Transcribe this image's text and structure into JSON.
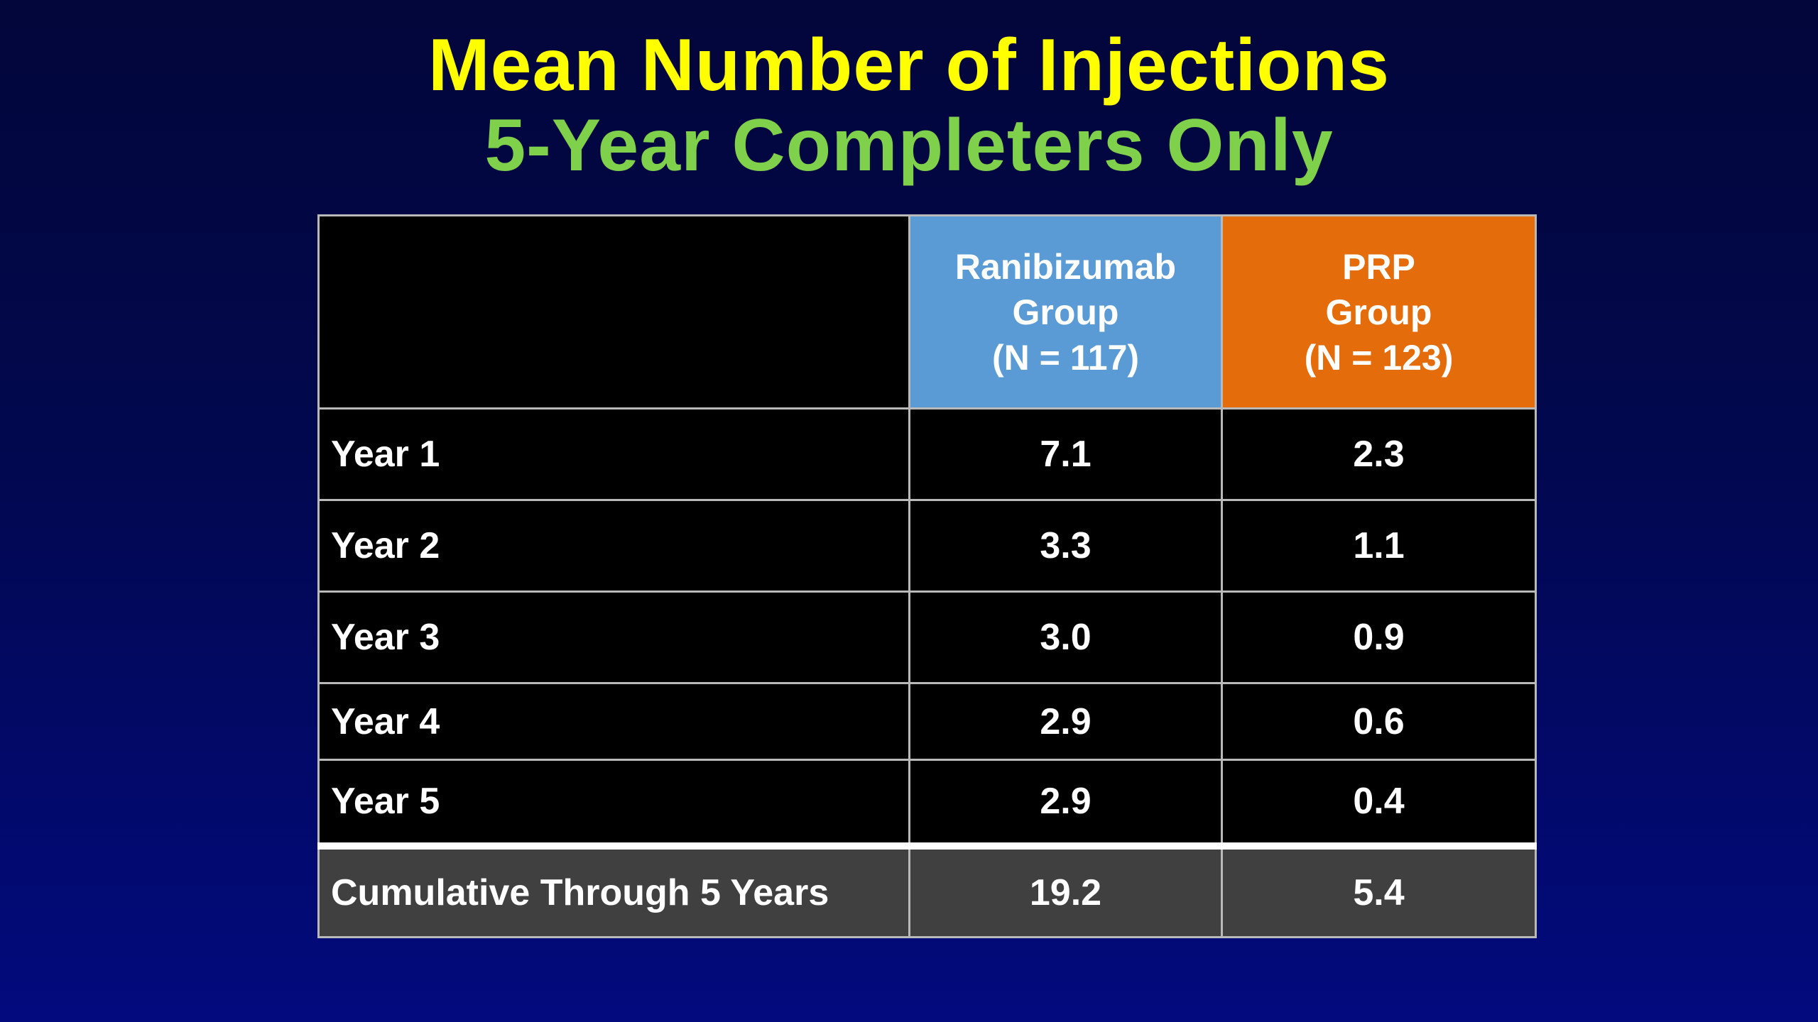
{
  "title": {
    "main": "Mean Number of Injections",
    "sub": "5-Year Completers Only"
  },
  "colors": {
    "title_main": "#ffff00",
    "title_sub": "#7fd04b",
    "ranibizumab_header": "#5b9bd5",
    "prp_header": "#e46c0a",
    "row_background": "#000000",
    "total_row_background": "#404040"
  },
  "table": {
    "header": {
      "ranibizumab": {
        "line1": "Ranibizumab",
        "line2": "Group",
        "line3": "(N = 117)"
      },
      "prp": {
        "line1": "PRP",
        "line2": "Group",
        "line3": "(N = 123)"
      }
    },
    "rows": [
      {
        "label": "Year 1",
        "ranibizumab": "7.1",
        "prp": "2.3"
      },
      {
        "label": "Year 2",
        "ranibizumab": "3.3",
        "prp": "1.1"
      },
      {
        "label": "Year 3",
        "ranibizumab": "3.0",
        "prp": "0.9"
      },
      {
        "label": "Year 4",
        "ranibizumab": "2.9",
        "prp": "0.6"
      },
      {
        "label": "Year 5",
        "ranibizumab": "2.9",
        "prp": "0.4"
      }
    ],
    "total": {
      "label": "Cumulative Through 5 Years",
      "ranibizumab": "19.2",
      "prp": "5.4"
    }
  }
}
